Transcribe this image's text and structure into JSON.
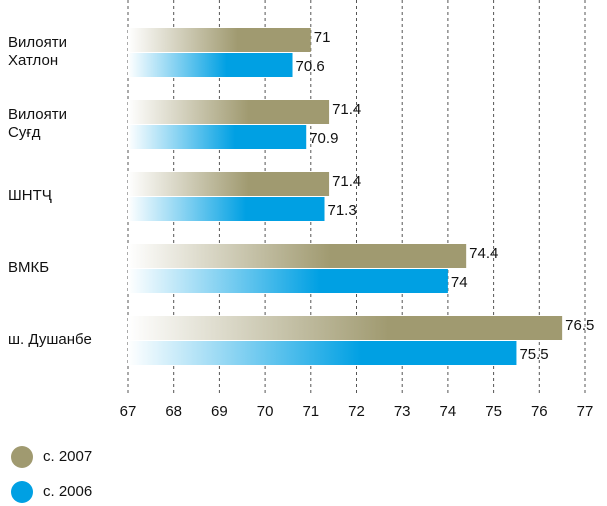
{
  "chart_data": {
    "type": "bar",
    "orientation": "horizontal",
    "categories": [
      "Вилояти Хатлон",
      "Вилояти Суғд",
      "ШНТҶ",
      "ВМКБ",
      "ш. Душанбе"
    ],
    "series": [
      {
        "name": "с. 2007",
        "color": "#a09a70",
        "values": [
          71,
          71.4,
          71.4,
          74.4,
          76.5
        ]
      },
      {
        "name": "с. 2006",
        "color": "#00a0e3",
        "values": [
          70.6,
          70.9,
          71.3,
          74,
          75.5
        ]
      }
    ],
    "xlim": [
      67,
      77
    ],
    "xticks": [
      67,
      68,
      69,
      70,
      71,
      72,
      73,
      74,
      75,
      76,
      77
    ],
    "grid": true,
    "legend": "bottom-left"
  }
}
